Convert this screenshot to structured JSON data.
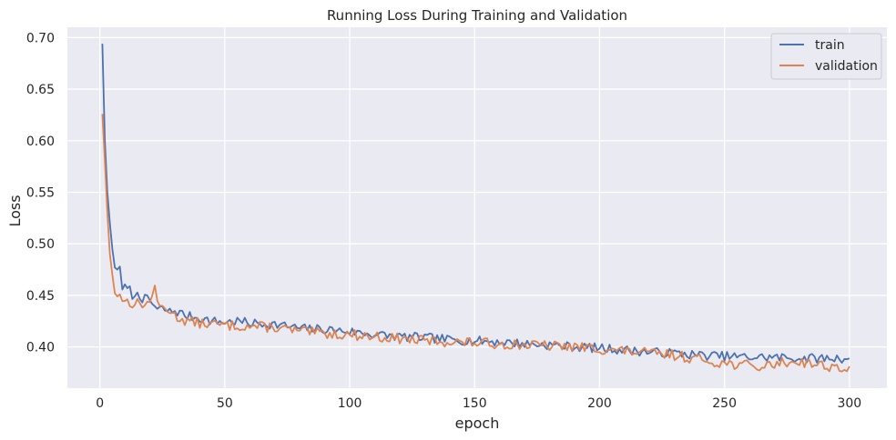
{
  "chart_data": {
    "type": "line",
    "title": "Running Loss During Training and Validation",
    "xlabel": "epoch",
    "ylabel": "Loss",
    "xlim": [
      -13,
      315
    ],
    "ylim": [
      0.36,
      0.71
    ],
    "xticks": [
      0,
      50,
      100,
      150,
      200,
      250,
      300
    ],
    "yticks": [
      0.4,
      0.45,
      0.5,
      0.55,
      0.6,
      0.65,
      0.7
    ],
    "xtick_labels": [
      "0",
      "50",
      "100",
      "150",
      "200",
      "250",
      "300"
    ],
    "ytick_labels": [
      "0.40",
      "0.45",
      "0.50",
      "0.55",
      "0.60",
      "0.65",
      "0.70"
    ],
    "grid": true,
    "legend_position": "top-right",
    "colors": {
      "background": "#eaeaf2",
      "grid": "#ffffff",
      "train": "#4c72b0",
      "validation": "#dd8452"
    },
    "series": [
      {
        "name": "train",
        "color": "#4c72b0",
        "anchors": [
          [
            1,
            0.694
          ],
          [
            2,
            0.6
          ],
          [
            3,
            0.55
          ],
          [
            4,
            0.52
          ],
          [
            5,
            0.495
          ],
          [
            6,
            0.477
          ],
          [
            7,
            0.475
          ],
          [
            8,
            0.478
          ],
          [
            9,
            0.458
          ],
          [
            10,
            0.457
          ],
          [
            12,
            0.455
          ],
          [
            14,
            0.446
          ],
          [
            15,
            0.454
          ],
          [
            17,
            0.447
          ],
          [
            20,
            0.445
          ],
          [
            23,
            0.436
          ],
          [
            25,
            0.437
          ],
          [
            28,
            0.434
          ],
          [
            30,
            0.435
          ],
          [
            35,
            0.43
          ],
          [
            40,
            0.428
          ],
          [
            45,
            0.425
          ],
          [
            50,
            0.424
          ],
          [
            55,
            0.425
          ],
          [
            60,
            0.423
          ],
          [
            70,
            0.422
          ],
          [
            80,
            0.418
          ],
          [
            90,
            0.417
          ],
          [
            100,
            0.415
          ],
          [
            110,
            0.412
          ],
          [
            120,
            0.41
          ],
          [
            130,
            0.409
          ],
          [
            140,
            0.407
          ],
          [
            150,
            0.406
          ],
          [
            160,
            0.405
          ],
          [
            170,
            0.403
          ],
          [
            180,
            0.402
          ],
          [
            190,
            0.4
          ],
          [
            200,
            0.399
          ],
          [
            210,
            0.397
          ],
          [
            220,
            0.395
          ],
          [
            230,
            0.394
          ],
          [
            240,
            0.392
          ],
          [
            250,
            0.391
          ],
          [
            260,
            0.39
          ],
          [
            270,
            0.39
          ],
          [
            280,
            0.389
          ],
          [
            290,
            0.389
          ],
          [
            300,
            0.389
          ]
        ],
        "noise": 0.0045,
        "seed": 7
      },
      {
        "name": "validation",
        "color": "#dd8452",
        "anchors": [
          [
            1,
            0.626
          ],
          [
            2,
            0.58
          ],
          [
            3,
            0.53
          ],
          [
            4,
            0.49
          ],
          [
            5,
            0.47
          ],
          [
            6,
            0.452
          ],
          [
            7,
            0.449
          ],
          [
            8,
            0.451
          ],
          [
            9,
            0.447
          ],
          [
            10,
            0.445
          ],
          [
            12,
            0.443
          ],
          [
            15,
            0.442
          ],
          [
            20,
            0.442
          ],
          [
            22,
            0.462
          ],
          [
            23,
            0.44
          ],
          [
            25,
            0.438
          ],
          [
            28,
            0.436
          ],
          [
            30,
            0.43
          ],
          [
            35,
            0.425
          ],
          [
            40,
            0.423
          ],
          [
            50,
            0.421
          ],
          [
            60,
            0.42
          ],
          [
            70,
            0.419
          ],
          [
            80,
            0.415
          ],
          [
            90,
            0.413
          ],
          [
            100,
            0.412
          ],
          [
            110,
            0.41
          ],
          [
            120,
            0.408
          ],
          [
            130,
            0.406
          ],
          [
            140,
            0.405
          ],
          [
            150,
            0.404
          ],
          [
            160,
            0.403
          ],
          [
            170,
            0.402
          ],
          [
            180,
            0.401
          ],
          [
            190,
            0.4
          ],
          [
            200,
            0.398
          ],
          [
            210,
            0.396
          ],
          [
            220,
            0.394
          ],
          [
            230,
            0.392
          ],
          [
            240,
            0.388
          ],
          [
            250,
            0.384
          ],
          [
            260,
            0.382
          ],
          [
            265,
            0.38
          ],
          [
            270,
            0.384
          ],
          [
            280,
            0.386
          ],
          [
            290,
            0.382
          ],
          [
            300,
            0.378
          ]
        ],
        "noise": 0.005,
        "seed": 13
      }
    ]
  }
}
